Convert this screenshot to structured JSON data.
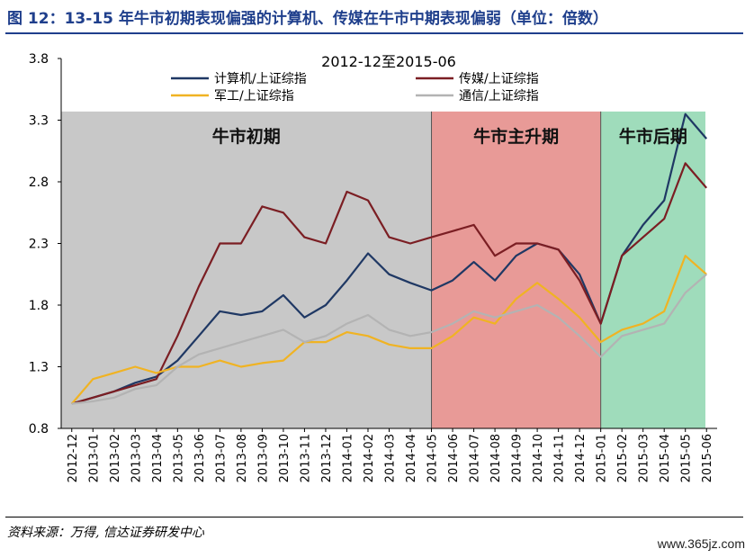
{
  "header": {
    "title": "图 12：13-15 年牛市初期表现偏强的计算机、传媒在牛市中期表现偏弱（单位：倍数）"
  },
  "footer": {
    "source": "资料来源：万得, 信达证券研发中心",
    "watermark": "www.365jz.com"
  },
  "chart_data": {
    "type": "line",
    "title": "2012-12至2015-06",
    "xlabel": "",
    "ylabel": "",
    "ylim": [
      0.8,
      3.8
    ],
    "yticks": [
      "0.8",
      "1.3",
      "1.8",
      "2.3",
      "2.8",
      "3.3",
      "3.8"
    ],
    "x_start": "2012-12",
    "x_end": "2015-06",
    "xticks": [
      "2012-12",
      "2013-01",
      "2013-02",
      "2013-03",
      "2013-04",
      "2013-05",
      "2013-06",
      "2013-07",
      "2013-08",
      "2013-09",
      "2013-10",
      "2013-11",
      "2013-12",
      "2014-01",
      "2014-02",
      "2014-03",
      "2014-04",
      "2014-05",
      "2014-06",
      "2014-07",
      "2014-08",
      "2014-09",
      "2014-10",
      "2014-11",
      "2014-12",
      "2015-01",
      "2015-02",
      "2015-03",
      "2015-04",
      "2015-05",
      "2015-06"
    ],
    "legend_position": "top",
    "grid": false,
    "periods": [
      {
        "label": "牛市初期",
        "start": "2012-12",
        "end": "2014-05",
        "color": "#c8c8c8"
      },
      {
        "label": "牛市主升期",
        "start": "2014-05",
        "end": "2015-01",
        "color": "#e89a97"
      },
      {
        "label": "牛市后期",
        "start": "2015-01",
        "end": "2015-06",
        "color": "#9fdcbb"
      }
    ],
    "series": [
      {
        "name": "计算机/上证综指",
        "color": "#1f3864",
        "x": [
          "2012-12",
          "2013-01",
          "2013-02",
          "2013-03",
          "2013-04",
          "2013-05",
          "2013-06",
          "2013-07",
          "2013-08",
          "2013-09",
          "2013-10",
          "2013-11",
          "2013-12",
          "2014-01",
          "2014-02",
          "2014-03",
          "2014-04",
          "2014-05",
          "2014-06",
          "2014-07",
          "2014-08",
          "2014-09",
          "2014-10",
          "2014-11",
          "2014-12",
          "2015-01",
          "2015-02",
          "2015-03",
          "2015-04",
          "2015-05",
          "2015-06"
        ],
        "values": [
          1.0,
          1.05,
          1.1,
          1.17,
          1.22,
          1.35,
          1.55,
          1.75,
          1.72,
          1.75,
          1.88,
          1.7,
          1.8,
          2.0,
          2.22,
          2.05,
          1.98,
          1.92,
          2.0,
          2.15,
          2.0,
          2.2,
          2.3,
          2.25,
          2.05,
          1.65,
          2.2,
          2.45,
          2.65,
          3.35,
          3.15
        ]
      },
      {
        "name": "传媒/上证综指",
        "color": "#7b1e23",
        "x": [
          "2012-12",
          "2013-01",
          "2013-02",
          "2013-03",
          "2013-04",
          "2013-05",
          "2013-06",
          "2013-07",
          "2013-08",
          "2013-09",
          "2013-10",
          "2013-11",
          "2013-12",
          "2014-01",
          "2014-02",
          "2014-03",
          "2014-04",
          "2014-05",
          "2014-06",
          "2014-07",
          "2014-08",
          "2014-09",
          "2014-10",
          "2014-11",
          "2014-12",
          "2015-01",
          "2015-02",
          "2015-03",
          "2015-04",
          "2015-05",
          "2015-06"
        ],
        "values": [
          1.0,
          1.05,
          1.1,
          1.15,
          1.2,
          1.55,
          1.95,
          2.3,
          2.3,
          2.6,
          2.55,
          2.35,
          2.3,
          2.72,
          2.65,
          2.35,
          2.3,
          2.35,
          2.4,
          2.45,
          2.2,
          2.3,
          2.3,
          2.25,
          2.0,
          1.65,
          2.2,
          2.35,
          2.5,
          2.95,
          2.75
        ]
      },
      {
        "name": "军工/上证综指",
        "color": "#f0b323",
        "x": [
          "2012-12",
          "2013-01",
          "2013-02",
          "2013-03",
          "2013-04",
          "2013-05",
          "2013-06",
          "2013-07",
          "2013-08",
          "2013-09",
          "2013-10",
          "2013-11",
          "2013-12",
          "2014-01",
          "2014-02",
          "2014-03",
          "2014-04",
          "2014-05",
          "2014-06",
          "2014-07",
          "2014-08",
          "2014-09",
          "2014-10",
          "2014-11",
          "2014-12",
          "2015-01",
          "2015-02",
          "2015-03",
          "2015-04",
          "2015-05",
          "2015-06"
        ],
        "values": [
          1.0,
          1.2,
          1.25,
          1.3,
          1.25,
          1.3,
          1.3,
          1.35,
          1.3,
          1.33,
          1.35,
          1.5,
          1.5,
          1.58,
          1.55,
          1.48,
          1.45,
          1.45,
          1.55,
          1.7,
          1.65,
          1.85,
          1.98,
          1.85,
          1.7,
          1.5,
          1.6,
          1.65,
          1.75,
          2.2,
          2.05
        ]
      },
      {
        "name": "通信/上证综指",
        "color": "#b3b3b3",
        "x": [
          "2012-12",
          "2013-01",
          "2013-02",
          "2013-03",
          "2013-04",
          "2013-05",
          "2013-06",
          "2013-07",
          "2013-08",
          "2013-09",
          "2013-10",
          "2013-11",
          "2013-12",
          "2014-01",
          "2014-02",
          "2014-03",
          "2014-04",
          "2014-05",
          "2014-06",
          "2014-07",
          "2014-08",
          "2014-09",
          "2014-10",
          "2014-11",
          "2014-12",
          "2015-01",
          "2015-02",
          "2015-03",
          "2015-04",
          "2015-05",
          "2015-06"
        ],
        "values": [
          1.0,
          1.02,
          1.05,
          1.12,
          1.15,
          1.3,
          1.4,
          1.45,
          1.5,
          1.55,
          1.6,
          1.5,
          1.55,
          1.65,
          1.72,
          1.6,
          1.55,
          1.58,
          1.65,
          1.75,
          1.7,
          1.75,
          1.8,
          1.7,
          1.55,
          1.38,
          1.55,
          1.6,
          1.65,
          1.9,
          2.05
        ]
      }
    ]
  }
}
